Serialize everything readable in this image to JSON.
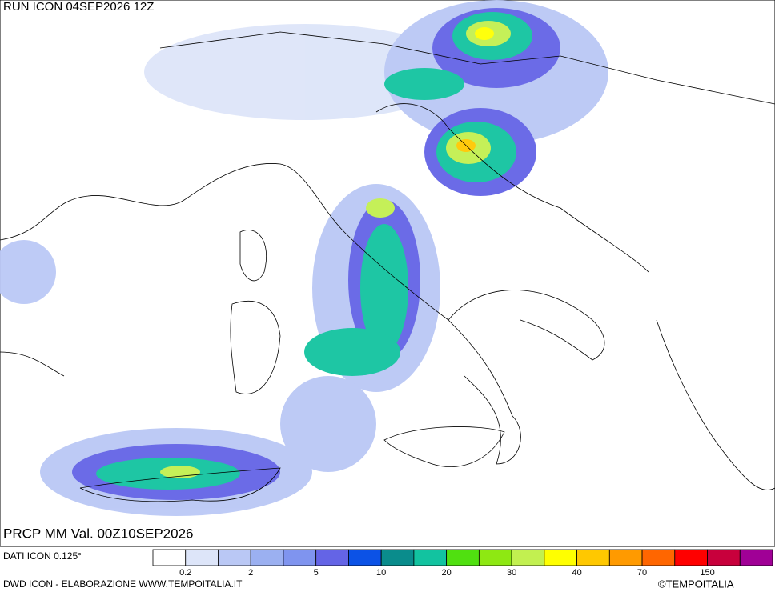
{
  "header": {
    "run": "RUN ICON 04SEP2026 12Z",
    "field": "PRCP MM Val. 00Z10SEP2026"
  },
  "legend": {
    "source": "DATI ICON 0.125°",
    "colors": [
      "#ffffff",
      "#dde5f9",
      "#bac8f5",
      "#9bb0f1",
      "#7f94ef",
      "#6464e6",
      "#0c52e6",
      "#0a8c8c",
      "#12c3a0",
      "#50e010",
      "#8ee812",
      "#c2f050",
      "#ffff00",
      "#ffc800",
      "#ff9a00",
      "#ff6600",
      "#ff0000",
      "#c8003c",
      "#a00096"
    ],
    "boundaries": [
      0.2,
      null,
      2,
      null,
      5,
      null,
      10,
      null,
      20,
      null,
      30,
      null,
      40,
      null,
      70,
      null,
      150,
      null
    ]
  },
  "footer": {
    "credit": "DWD ICON - ELABORAZIONE WWW.TEMPOITALIA.IT",
    "copyright": "©TEMPOITALIA"
  }
}
